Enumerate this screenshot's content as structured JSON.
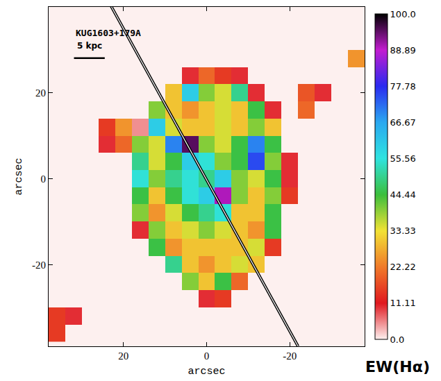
{
  "chart_data": {
    "type": "heatmap",
    "label": "KUG1603+179A",
    "colorbar_label": "EW(Hα)",
    "xlabel": "arcsec",
    "ylabel": "arcsec",
    "xlim": [
      38,
      -38
    ],
    "ylim": [
      -39,
      40
    ],
    "xticks": [
      20,
      0,
      -20
    ],
    "yticks": [
      20,
      0,
      -20
    ],
    "zlim": [
      0,
      100
    ],
    "zticks": [
      {
        "value": 0,
        "label": "0.0"
      },
      11.11,
      22.22,
      33.33,
      44.44,
      55.56,
      66.67,
      77.78,
      88.89,
      {
        "value": 100,
        "label": "100.0"
      }
    ],
    "scale_bar": {
      "label": "5 kpc",
      "length": 7.4
    },
    "slit": {
      "x": [
        24,
        -22
      ],
      "y": [
        42,
        -39
      ]
    },
    "x": [
      36,
      32,
      28,
      24,
      20,
      16,
      12,
      8,
      4,
      0,
      -4,
      -8,
      -12,
      -16,
      -20,
      -24,
      -28,
      -32,
      -36
    ],
    "y": [
      36,
      32,
      28,
      24,
      20,
      16,
      12,
      8,
      4,
      0,
      -4,
      -8,
      -12,
      -16,
      -20,
      -24,
      -28,
      -32,
      -36
    ],
    "z": [
      [
        0,
        0,
        0,
        0,
        0,
        0,
        0,
        0,
        0,
        0,
        0,
        0,
        0,
        0,
        0,
        0,
        0,
        0,
        0
      ],
      [
        0,
        0,
        0,
        0,
        0,
        0,
        0,
        0,
        0,
        0,
        0,
        0,
        0,
        0,
        0,
        0,
        0,
        0,
        0
      ],
      [
        0,
        0,
        0,
        0,
        0,
        0,
        0,
        0,
        0,
        0,
        0,
        0,
        0,
        0,
        0,
        0,
        0,
        0,
        25
      ],
      [
        0,
        0,
        0,
        0,
        0,
        0,
        0,
        0,
        10,
        20,
        15,
        10,
        0,
        0,
        0,
        0,
        0,
        0,
        0
      ],
      [
        0,
        0,
        0,
        0,
        0,
        0,
        0,
        30,
        60,
        40,
        35,
        50,
        10,
        0,
        0,
        18,
        10,
        0,
        0
      ],
      [
        0,
        0,
        0,
        0,
        0,
        0,
        40,
        30,
        25,
        30,
        35,
        30,
        45,
        10,
        0,
        20,
        0,
        0,
        0
      ],
      [
        0,
        0,
        0,
        15,
        25,
        5,
        60,
        35,
        30,
        30,
        35,
        30,
        40,
        30,
        0,
        0,
        0,
        0,
        0
      ],
      [
        0,
        0,
        0,
        10,
        20,
        40,
        35,
        70,
        95,
        40,
        35,
        45,
        70,
        45,
        0,
        0,
        0,
        0,
        0
      ],
      [
        0,
        0,
        0,
        0,
        0,
        50,
        35,
        45,
        60,
        55,
        40,
        45,
        75,
        40,
        10,
        0,
        0,
        0,
        0
      ],
      [
        0,
        0,
        0,
        0,
        0,
        55,
        40,
        50,
        55,
        50,
        60,
        40,
        35,
        45,
        10,
        0,
        0,
        0,
        0
      ],
      [
        0,
        0,
        0,
        0,
        0,
        45,
        30,
        45,
        55,
        60,
        90,
        40,
        30,
        40,
        15,
        0,
        0,
        0,
        0
      ],
      [
        0,
        0,
        0,
        0,
        0,
        40,
        25,
        35,
        45,
        50,
        55,
        30,
        30,
        45,
        0,
        0,
        0,
        0,
        0
      ],
      [
        0,
        0,
        0,
        0,
        0,
        10,
        40,
        30,
        35,
        40,
        35,
        30,
        25,
        45,
        0,
        0,
        0,
        0,
        0
      ],
      [
        0,
        0,
        0,
        0,
        0,
        0,
        45,
        25,
        30,
        30,
        30,
        30,
        35,
        15,
        0,
        0,
        0,
        0,
        0
      ],
      [
        0,
        0,
        0,
        0,
        0,
        0,
        0,
        50,
        30,
        25,
        30,
        35,
        30,
        0,
        0,
        0,
        0,
        0,
        0
      ],
      [
        0,
        0,
        0,
        0,
        0,
        0,
        0,
        0,
        40,
        30,
        45,
        20,
        0,
        0,
        0,
        0,
        0,
        0,
        0
      ],
      [
        0,
        0,
        0,
        0,
        0,
        0,
        0,
        0,
        0,
        10,
        15,
        0,
        0,
        0,
        0,
        0,
        0,
        0,
        0
      ],
      [
        15,
        10,
        0,
        0,
        0,
        0,
        0,
        0,
        0,
        0,
        0,
        0,
        0,
        0,
        0,
        0,
        0,
        0,
        0
      ],
      [
        15,
        0,
        0,
        0,
        0,
        0,
        0,
        0,
        0,
        0,
        0,
        0,
        0,
        0,
        0,
        0,
        0,
        0,
        0
      ]
    ]
  }
}
